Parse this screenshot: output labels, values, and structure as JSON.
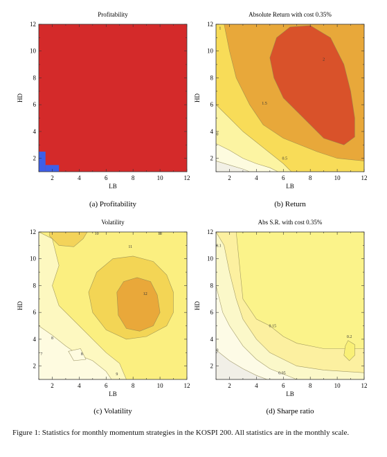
{
  "figure_caption": {
    "label": "Figure 1:",
    "text": "Statistics for monthly momentum strategies in the KOSPI 200. All statistics are in the monthly scale."
  },
  "chart_data": [
    {
      "type": "heatmap",
      "title": "Profitability",
      "subcaption": "(a) Profitability",
      "xlabel": "LB",
      "ylabel": "HD",
      "xlim": [
        1,
        12
      ],
      "ylim": [
        1,
        12
      ],
      "xticks": [
        "2",
        "4",
        "6",
        "8",
        "10",
        "12"
      ],
      "yticks": [
        "2",
        "4",
        "6",
        "8",
        "10",
        "12"
      ],
      "cells": [
        {
          "x": [
            1,
            1.5
          ],
          "y": [
            1,
            2.5
          ],
          "status": "unprofitable"
        },
        {
          "x": [
            1.5,
            2.5
          ],
          "y": [
            1,
            1.5
          ],
          "status": "unprofitable"
        }
      ],
      "default_status": "profitable",
      "colors": {
        "profitable": "#d42a2a",
        "unprofitable": "#3d5fe8"
      }
    },
    {
      "type": "contour",
      "title": "Absolute Return with cost 0.35%",
      "subcaption": "(b) Return",
      "xlabel": "LB",
      "ylabel": "HD",
      "xlim": [
        1,
        12
      ],
      "ylim": [
        1,
        12
      ],
      "xticks": [
        "2",
        "4",
        "6",
        "8",
        "10",
        "12"
      ],
      "yticks": [
        "2",
        "4",
        "6",
        "8",
        "10",
        "12"
      ],
      "background": "#e8a83a",
      "regions": [
        {
          "fill": "#f8dc58",
          "points": [
            [
              1,
              12
            ],
            [
              1,
              1
            ],
            [
              12,
              1
            ],
            [
              12,
              1.8
            ],
            [
              10,
              2
            ],
            [
              8.5,
              2.5
            ],
            [
              6,
              3.5
            ],
            [
              4.5,
              4.5
            ],
            [
              3.5,
              6
            ],
            [
              2.5,
              8
            ],
            [
              2,
              10
            ],
            [
              1.6,
              12
            ]
          ]
        },
        {
          "fill": "#fcf4a2",
          "points": [
            [
              1,
              1
            ],
            [
              1,
              6
            ],
            [
              2,
              5
            ],
            [
              3,
              4
            ],
            [
              4,
              3.2
            ],
            [
              5,
              2.4
            ],
            [
              6,
              1.6
            ],
            [
              6.6,
              1
            ]
          ]
        },
        {
          "fill": "#fdfbdf",
          "points": [
            [
              1,
              1
            ],
            [
              1,
              3.1
            ],
            [
              2,
              2.6
            ],
            [
              3,
              2
            ],
            [
              4,
              1.6
            ],
            [
              5,
              1.3
            ],
            [
              5.6,
              1
            ]
          ]
        },
        {
          "fill": "#f2f0e6",
          "points": [
            [
              1,
              1
            ],
            [
              1,
              1.8
            ],
            [
              2,
              1.5
            ],
            [
              3,
              1.2
            ],
            [
              3.5,
              1
            ]
          ]
        },
        {
          "fill": "#d9522a",
          "points": [
            [
              5,
              9.5
            ],
            [
              5.5,
              11
            ],
            [
              6.5,
              11.8
            ],
            [
              8,
              11.9
            ],
            [
              9.5,
              11
            ],
            [
              10.5,
              9
            ],
            [
              11,
              7
            ],
            [
              11.3,
              5
            ],
            [
              11.3,
              3.6
            ],
            [
              10.5,
              3
            ],
            [
              9,
              3.5
            ],
            [
              7.5,
              5
            ],
            [
              6,
              6.5
            ],
            [
              5.3,
              8
            ]
          ]
        }
      ],
      "labels": [
        {
          "text": "1",
          "x": 1.3,
          "y": 11.6
        },
        {
          "text": "2",
          "x": 9,
          "y": 9.3
        },
        {
          "text": "1.5",
          "x": 4.6,
          "y": 6
        },
        {
          "text": "0.5",
          "x": 6.1,
          "y": 1.9
        },
        {
          "text": "0",
          "x": 1.1,
          "y": 3.7
        }
      ]
    },
    {
      "type": "contour",
      "title": "Volatility",
      "subcaption": "(c) Volatility",
      "xlabel": "LB",
      "ylabel": "HD",
      "xlim": [
        1,
        12
      ],
      "ylim": [
        1,
        12
      ],
      "xticks": [
        "2",
        "4",
        "6",
        "8",
        "10",
        "12"
      ],
      "yticks": [
        "2",
        "4",
        "6",
        "8",
        "10",
        "12"
      ],
      "background": "#fbef80",
      "regions": [
        {
          "fill": "#fdf8c0",
          "points": [
            [
              1,
              1
            ],
            [
              1,
              12
            ],
            [
              2,
              11.5
            ],
            [
              2.5,
              9.5
            ],
            [
              2,
              8
            ],
            [
              2.5,
              6.5
            ],
            [
              4,
              5
            ],
            [
              5,
              4
            ],
            [
              6,
              3
            ],
            [
              7,
              2.2
            ],
            [
              7.5,
              1
            ]
          ]
        },
        {
          "fill": "#fefbe0",
          "points": [
            [
              1,
              1
            ],
            [
              1,
              5
            ],
            [
              2,
              4.3
            ],
            [
              3,
              3.5
            ],
            [
              4,
              2.8
            ],
            [
              5,
              2.4
            ],
            [
              6,
              1.6
            ],
            [
              6.4,
              1
            ]
          ]
        },
        {
          "fill": "#f3d555",
          "points": [
            [
              4.7,
              7.5
            ],
            [
              5.3,
              9
            ],
            [
              6.5,
              10
            ],
            [
              8,
              10.2
            ],
            [
              9.5,
              9.8
            ],
            [
              10.5,
              8.8
            ],
            [
              11,
              7.5
            ],
            [
              11,
              6
            ],
            [
              10.5,
              5
            ],
            [
              9,
              4.2
            ],
            [
              7.5,
              4
            ],
            [
              6,
              4.7
            ],
            [
              5,
              6
            ]
          ]
        },
        {
          "fill": "#f3d35a",
          "points": [
            [
              1.8,
              11.7
            ],
            [
              2.5,
              11
            ],
            [
              3.6,
              10.9
            ],
            [
              4.3,
              11.5
            ],
            [
              4.6,
              12
            ],
            [
              1.8,
              12
            ]
          ]
        },
        {
          "fill": "#e9a83a",
          "points": [
            [
              6.8,
              7.5
            ],
            [
              7.3,
              8.3
            ],
            [
              8.3,
              8.6
            ],
            [
              9.3,
              8.3
            ],
            [
              9.8,
              7.3
            ],
            [
              10,
              6
            ],
            [
              9.5,
              5
            ],
            [
              8.5,
              4.6
            ],
            [
              7.5,
              4.8
            ],
            [
              6.9,
              5.8
            ]
          ]
        },
        {
          "fill": "#fefbe0",
          "points": [
            [
              3.2,
              3.1
            ],
            [
              3.6,
              2.4
            ],
            [
              4.5,
              2.5
            ],
            [
              4.1,
              3.3
            ]
          ]
        }
      ],
      "labels": [
        {
          "text": "10",
          "x": 5.3,
          "y": 11.8
        },
        {
          "text": "10",
          "x": 10,
          "y": 11.8
        },
        {
          "text": "11",
          "x": 7.8,
          "y": 10.8
        },
        {
          "text": "12",
          "x": 8.9,
          "y": 7.3
        },
        {
          "text": "8",
          "x": 2,
          "y": 4
        },
        {
          "text": "8",
          "x": 4.2,
          "y": 2.8
        },
        {
          "text": "7",
          "x": 1.2,
          "y": 2.8
        },
        {
          "text": "9",
          "x": 6.8,
          "y": 1.3
        }
      ]
    },
    {
      "type": "contour",
      "title": "Abs S.R. with cost 0.35%",
      "subcaption": "(d) Sharpe ratio",
      "xlabel": "LB",
      "ylabel": "HD",
      "xlim": [
        1,
        12
      ],
      "ylim": [
        1,
        12
      ],
      "xticks": [
        "2",
        "4",
        "6",
        "8",
        "10",
        "12"
      ],
      "yticks": [
        "2",
        "4",
        "6",
        "8",
        "10",
        "12"
      ],
      "background": "#fcf0a0",
      "regions": [
        {
          "fill": "#fbf38a",
          "points": [
            [
              12,
              12
            ],
            [
              2.5,
              12
            ],
            [
              2.8,
              9
            ],
            [
              3,
              7
            ],
            [
              4,
              5.5
            ],
            [
              5,
              5
            ],
            [
              6,
              4.2
            ],
            [
              7,
              3.7
            ],
            [
              9,
              3.3
            ],
            [
              12,
              3.3
            ]
          ]
        },
        {
          "fill": "#fbf8c9",
          "points": [
            [
              1,
              1
            ],
            [
              1,
              12
            ],
            [
              1.6,
              11
            ],
            [
              2,
              9
            ],
            [
              2.5,
              7
            ],
            [
              3,
              5.5
            ],
            [
              4,
              4
            ],
            [
              5,
              3
            ],
            [
              7,
              2
            ],
            [
              9,
              1.7
            ],
            [
              12,
              1.5
            ],
            [
              12,
              1
            ]
          ]
        },
        {
          "fill": "#fdfbe6",
          "points": [
            [
              1,
              1
            ],
            [
              1,
              8
            ],
            [
              1.5,
              6
            ],
            [
              2,
              5
            ],
            [
              3,
              3.5
            ],
            [
              4,
              2.5
            ],
            [
              5,
              1.8
            ],
            [
              6.5,
              1.2
            ],
            [
              7,
              1
            ]
          ]
        },
        {
          "fill": "#f1efe7",
          "points": [
            [
              1,
              1
            ],
            [
              1,
              3.2
            ],
            [
              2,
              2.4
            ],
            [
              3,
              1.8
            ],
            [
              4,
              1.3
            ],
            [
              4.8,
              1
            ]
          ]
        },
        {
          "fill": "#f9f077",
          "points": [
            [
              10.6,
              3.5
            ],
            [
              10.8,
              3.9
            ],
            [
              11.3,
              3.6
            ],
            [
              11.3,
              2.8
            ],
            [
              10.9,
              2.4
            ],
            [
              10.5,
              2.8
            ]
          ]
        }
      ],
      "labels": [
        {
          "text": "0.1",
          "x": 1.2,
          "y": 10.9
        },
        {
          "text": "0.15",
          "x": 5.2,
          "y": 4.9
        },
        {
          "text": "0.2",
          "x": 10.9,
          "y": 4.1
        },
        {
          "text": "0.05",
          "x": 5.9,
          "y": 1.4
        },
        {
          "text": "0",
          "x": 1.1,
          "y": 3.1
        }
      ]
    }
  ]
}
